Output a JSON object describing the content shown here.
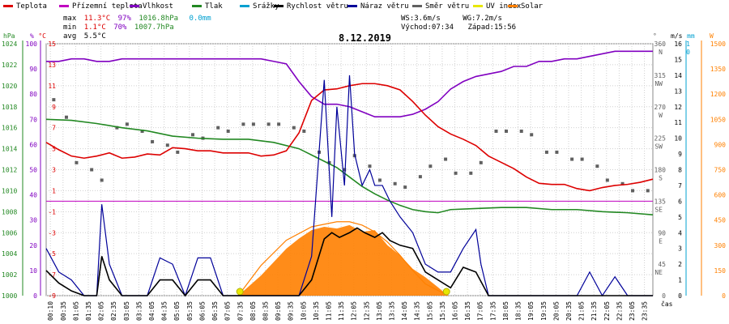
{
  "legend": [
    {
      "label": "Teplota",
      "color": "#dd0000"
    },
    {
      "label": "Přízemní teplota",
      "color": "#c000c0"
    },
    {
      "label": "Vlhkost",
      "color": "#8000c0"
    },
    {
      "label": "Tlak",
      "color": "#228822"
    },
    {
      "label": "Srážky",
      "color": "#00a0d0"
    },
    {
      "label": "Rychlost větru",
      "color": "#000000"
    },
    {
      "label": "Náraz větru",
      "color": "#000099"
    },
    {
      "label": "Směr větru",
      "color": "#606060"
    },
    {
      "label": "UV index",
      "color": "#e8e800"
    },
    {
      "label": "Solar",
      "color": "#ff8000"
    }
  ],
  "stats": {
    "max_label": "max",
    "max_temp": "11.3°C",
    "max_hum": "97%",
    "max_press": "1016.8hPa",
    "max_rain": "0.0mm",
    "min_label": "min",
    "min_temp": "1.1°C",
    "min_hum": "70%",
    "min_press": "1007.7hPa",
    "avg_label": "avg",
    "avg_temp": "5.5°C"
  },
  "wind_info": {
    "ws": "WS:3.6m/s",
    "wg": "WG:7.2m/s",
    "sunrise": "Východ:07:34",
    "sunset": "Západ:15:56"
  },
  "title": "8.12.2019",
  "axes": {
    "hpa_unit": "hPa",
    "pct_unit": "%",
    "c_unit": "°C",
    "hpa_ticks": [
      "1024",
      "1022",
      "1020",
      "1018",
      "1016",
      "1014",
      "1012",
      "1010",
      "1008",
      "1006",
      "1004",
      "1002",
      "1000"
    ],
    "pct_ticks": [
      "100",
      "90",
      "80",
      "70",
      "60",
      "50",
      "40",
      "30",
      "20",
      "10",
      "0"
    ],
    "c_ticks": [
      "15",
      "13",
      "11",
      "9",
      "7",
      "5",
      "3",
      "1",
      "-1",
      "-3",
      "-5",
      "-7",
      "-9"
    ],
    "deg_unit": "°",
    "ms_unit": "m/s",
    "mm_unit": "mm",
    "w_unit": "W",
    "deg_ticks": [
      "360",
      "315",
      "270",
      "225",
      "180",
      "135",
      "90",
      "45",
      "0"
    ],
    "dir_ticks": [
      "N",
      "NW",
      "W",
      "SW",
      "S",
      "SE",
      "E",
      "NE"
    ],
    "ms_ticks": [
      "16",
      "15",
      "14",
      "13",
      "12",
      "11",
      "10",
      "9",
      "8",
      "7",
      "6",
      "5",
      "4",
      "3",
      "2",
      "1",
      "0"
    ],
    "mm_ticks": [
      "1",
      "0"
    ],
    "w_ticks": [
      "1500",
      "1350",
      "1200",
      "1050",
      "900",
      "750",
      "600",
      "450",
      "300",
      "150",
      "0"
    ],
    "time_unit": "čas",
    "time_ticks": [
      "00:10",
      "00:35",
      "01:05",
      "01:35",
      "02:05",
      "02:35",
      "03:05",
      "03:35",
      "04:05",
      "04:35",
      "05:05",
      "05:35",
      "06:05",
      "06:35",
      "07:05",
      "07:35",
      "08:05",
      "08:35",
      "09:05",
      "09:35",
      "10:05",
      "10:35",
      "11:05",
      "11:35",
      "12:05",
      "12:35",
      "13:05",
      "13:35",
      "14:05",
      "14:35",
      "15:05",
      "15:35",
      "16:05",
      "16:35",
      "17:05",
      "17:35",
      "18:05",
      "18:35",
      "19:05",
      "19:35",
      "20:05",
      "20:35",
      "21:05",
      "21:35",
      "22:05",
      "22:35",
      "23:05",
      "23:35"
    ]
  },
  "chart_data": {
    "type": "line",
    "date": "8.12.2019",
    "x_range_hours": [
      0,
      24
    ],
    "series": [
      {
        "name": "Teplota",
        "unit": "°C",
        "color": "#dd0000",
        "x": [
          0,
          0.5,
          1,
          1.5,
          2,
          2.5,
          3,
          3.5,
          4,
          4.5,
          5,
          5.5,
          6,
          6.5,
          7,
          7.5,
          8,
          8.5,
          9,
          9.5,
          10,
          10.5,
          11,
          11.5,
          12,
          12.5,
          13,
          13.5,
          14,
          14.5,
          15,
          15.5,
          16,
          16.5,
          17,
          17.5,
          18,
          18.5,
          19,
          19.5,
          20,
          20.5,
          21,
          21.5,
          22,
          22.5,
          23,
          23.5,
          24
        ],
        "y": [
          5.6,
          4.9,
          4.3,
          4.1,
          4.3,
          4.6,
          4.1,
          4.2,
          4.5,
          4.4,
          5.1,
          5.0,
          4.8,
          4.8,
          4.6,
          4.6,
          4.6,
          4.3,
          4.4,
          4.8,
          6.5,
          9.6,
          10.6,
          10.7,
          11.0,
          11.2,
          11.2,
          11.0,
          10.6,
          9.5,
          8.2,
          7.1,
          6.4,
          5.9,
          5.3,
          4.3,
          3.7,
          3.1,
          2.3,
          1.7,
          1.6,
          1.6,
          1.2,
          1.0,
          1.3,
          1.5,
          1.6,
          1.8,
          2.1
        ]
      },
      {
        "name": "Vlhkost",
        "unit": "%",
        "color": "#8000c0",
        "x": [
          0,
          0.5,
          1,
          1.5,
          2,
          2.5,
          3,
          3.5,
          4,
          4.5,
          5,
          5.5,
          6,
          6.5,
          7,
          7.5,
          8,
          8.5,
          9,
          9.5,
          10,
          10.5,
          11,
          11.5,
          12,
          12.5,
          13,
          13.5,
          14,
          14.5,
          15,
          15.5,
          16,
          16.5,
          17,
          17.5,
          18,
          18.5,
          19,
          19.5,
          20,
          20.5,
          21,
          21.5,
          22,
          22.5,
          23,
          23.5,
          24
        ],
        "y": [
          93,
          93,
          94,
          94,
          93,
          93,
          94,
          94,
          94,
          94,
          94,
          94,
          94,
          94,
          94,
          94,
          94,
          94,
          93,
          92,
          85,
          79,
          76,
          76,
          75,
          73,
          71,
          71,
          71,
          72,
          74,
          77,
          82,
          85,
          87,
          88,
          89,
          91,
          91,
          93,
          93,
          94,
          94,
          95,
          96,
          97,
          97,
          97,
          97
        ]
      },
      {
        "name": "Tlak",
        "unit": "hPa",
        "color": "#228822",
        "x": [
          0,
          1,
          2,
          3,
          4,
          5,
          6,
          7,
          8,
          9,
          10,
          10.5,
          11,
          11.5,
          12,
          12.5,
          13,
          13.5,
          14,
          14.5,
          15,
          15.5,
          16,
          17,
          18,
          19,
          20,
          21,
          22,
          23,
          24
        ],
        "y": [
          1016.8,
          1016.7,
          1016.4,
          1016.0,
          1015.7,
          1015.2,
          1015.0,
          1014.9,
          1014.9,
          1014.6,
          1014.0,
          1013.4,
          1012.8,
          1012.2,
          1011.3,
          1010.4,
          1009.7,
          1009.1,
          1008.6,
          1008.2,
          1008.0,
          1007.9,
          1008.2,
          1008.3,
          1008.4,
          1008.4,
          1008.2,
          1008.2,
          1008.0,
          1007.9,
          1007.7
        ]
      },
      {
        "name": "Rychlost větru",
        "unit": "m/s",
        "color": "#000000",
        "x": [
          0,
          0.5,
          1,
          1.5,
          2,
          2.2,
          2.5,
          3,
          3.5,
          4,
          4.5,
          5,
          5.5,
          6,
          6.5,
          7,
          7.5,
          8,
          9,
          10,
          10.5,
          11,
          11.3,
          11.6,
          12,
          12.3,
          12.6,
          13,
          13.3,
          13.6,
          14,
          14.5,
          15,
          15.5,
          16,
          16.5,
          17,
          17.5,
          18,
          19,
          20,
          21,
          22,
          23,
          24
        ],
        "y": [
          1.6,
          0.8,
          0.3,
          0,
          0,
          2.5,
          1.0,
          0,
          0,
          0,
          1.0,
          1.0,
          0,
          1.0,
          1.0,
          0,
          0,
          0,
          0,
          0,
          1.0,
          3.6,
          4.0,
          3.7,
          4.0,
          4.3,
          4.0,
          3.7,
          4.0,
          3.5,
          3.2,
          3.0,
          1.5,
          1.0,
          0.5,
          1.8,
          1.5,
          0,
          0,
          0,
          0,
          0,
          0,
          0,
          0
        ]
      },
      {
        "name": "Náraz větru",
        "unit": "m/s",
        "color": "#000099",
        "x": [
          0,
          0.5,
          1,
          1.5,
          2,
          2.2,
          2.5,
          3,
          3.5,
          4,
          4.5,
          5,
          5.5,
          6,
          6.5,
          7,
          7.5,
          8,
          9,
          10,
          10.5,
          11,
          11.3,
          11.5,
          11.8,
          12,
          12.2,
          12.5,
          12.8,
          13,
          13.3,
          13.6,
          14,
          14.5,
          15,
          15.5,
          16,
          16.5,
          17,
          17.2,
          17.5,
          18,
          19,
          20,
          21,
          21.5,
          22,
          22.5,
          23,
          24
        ],
        "y": [
          3.0,
          1.5,
          1.0,
          0,
          0,
          5.8,
          2.0,
          0,
          0,
          0,
          2.4,
          2.0,
          0,
          2.4,
          2.4,
          0,
          0,
          0,
          0,
          0,
          2.5,
          13.7,
          5.0,
          12.0,
          7.0,
          14.0,
          9.0,
          7.0,
          8.0,
          7.0,
          7.0,
          6.0,
          5.0,
          4.0,
          2.0,
          1.5,
          1.5,
          3.0,
          4.2,
          2.0,
          0,
          0,
          0,
          0,
          0,
          1.5,
          0,
          1.2,
          0,
          0
        ]
      },
      {
        "name": "Směr větru",
        "unit": "°",
        "color": "#606060",
        "x": [
          0.3,
          0.8,
          1.2,
          1.8,
          2.2,
          2.8,
          3.2,
          3.8,
          4.2,
          4.8,
          5.2,
          5.8,
          6.2,
          6.8,
          7.2,
          7.8,
          8.2,
          8.8,
          9.2,
          9.8,
          10.2,
          10.8,
          11.2,
          11.8,
          12.2,
          12.8,
          13.2,
          13.8,
          14.2,
          14.8,
          15.2,
          15.8,
          16.2,
          16.8,
          17.2,
          17.8,
          18.2,
          18.8,
          19.2,
          19.8,
          20.2,
          20.8,
          21.2,
          21.8,
          22.2,
          22.8,
          23.2,
          23.8
        ],
        "y": [
          280,
          255,
          190,
          180,
          165,
          240,
          245,
          235,
          220,
          215,
          205,
          230,
          225,
          240,
          235,
          245,
          245,
          245,
          245,
          240,
          235,
          205,
          190,
          180,
          200,
          185,
          165,
          160,
          155,
          170,
          185,
          195,
          175,
          175,
          190,
          235,
          235,
          235,
          230,
          205,
          205,
          195,
          195,
          185,
          165,
          160,
          150,
          150
        ]
      },
      {
        "name": "UV index",
        "unit": "",
        "color": "#e8e800",
        "x": [
          7.6,
          15.9
        ],
        "y": [
          0,
          0
        ]
      },
      {
        "name": "Solar",
        "unit": "W",
        "color": "#ff8000",
        "x": [
          7.6,
          8.5,
          9.5,
          10.0,
          10.5,
          11.0,
          11.5,
          12.0,
          12.5,
          13.0,
          13.5,
          14.0,
          14.5,
          15.0,
          15.5,
          15.9
        ],
        "y": [
          0,
          120,
          280,
          340,
          390,
          410,
          400,
          420,
          380,
          390,
          300,
          240,
          160,
          110,
          50,
          0
        ],
        "clear_sky": [
          0,
          180,
          330,
          410,
          440,
          440,
          420,
          380,
          320,
          240,
          150,
          70,
          0
        ]
      }
    ],
    "solar_clear_sky_x": [
      7.6,
      8.5,
      9.5,
      10.5,
      11.5,
      12.0,
      12.5,
      13.0,
      13.5,
      14.0,
      14.5,
      15.0,
      15.9
    ]
  }
}
